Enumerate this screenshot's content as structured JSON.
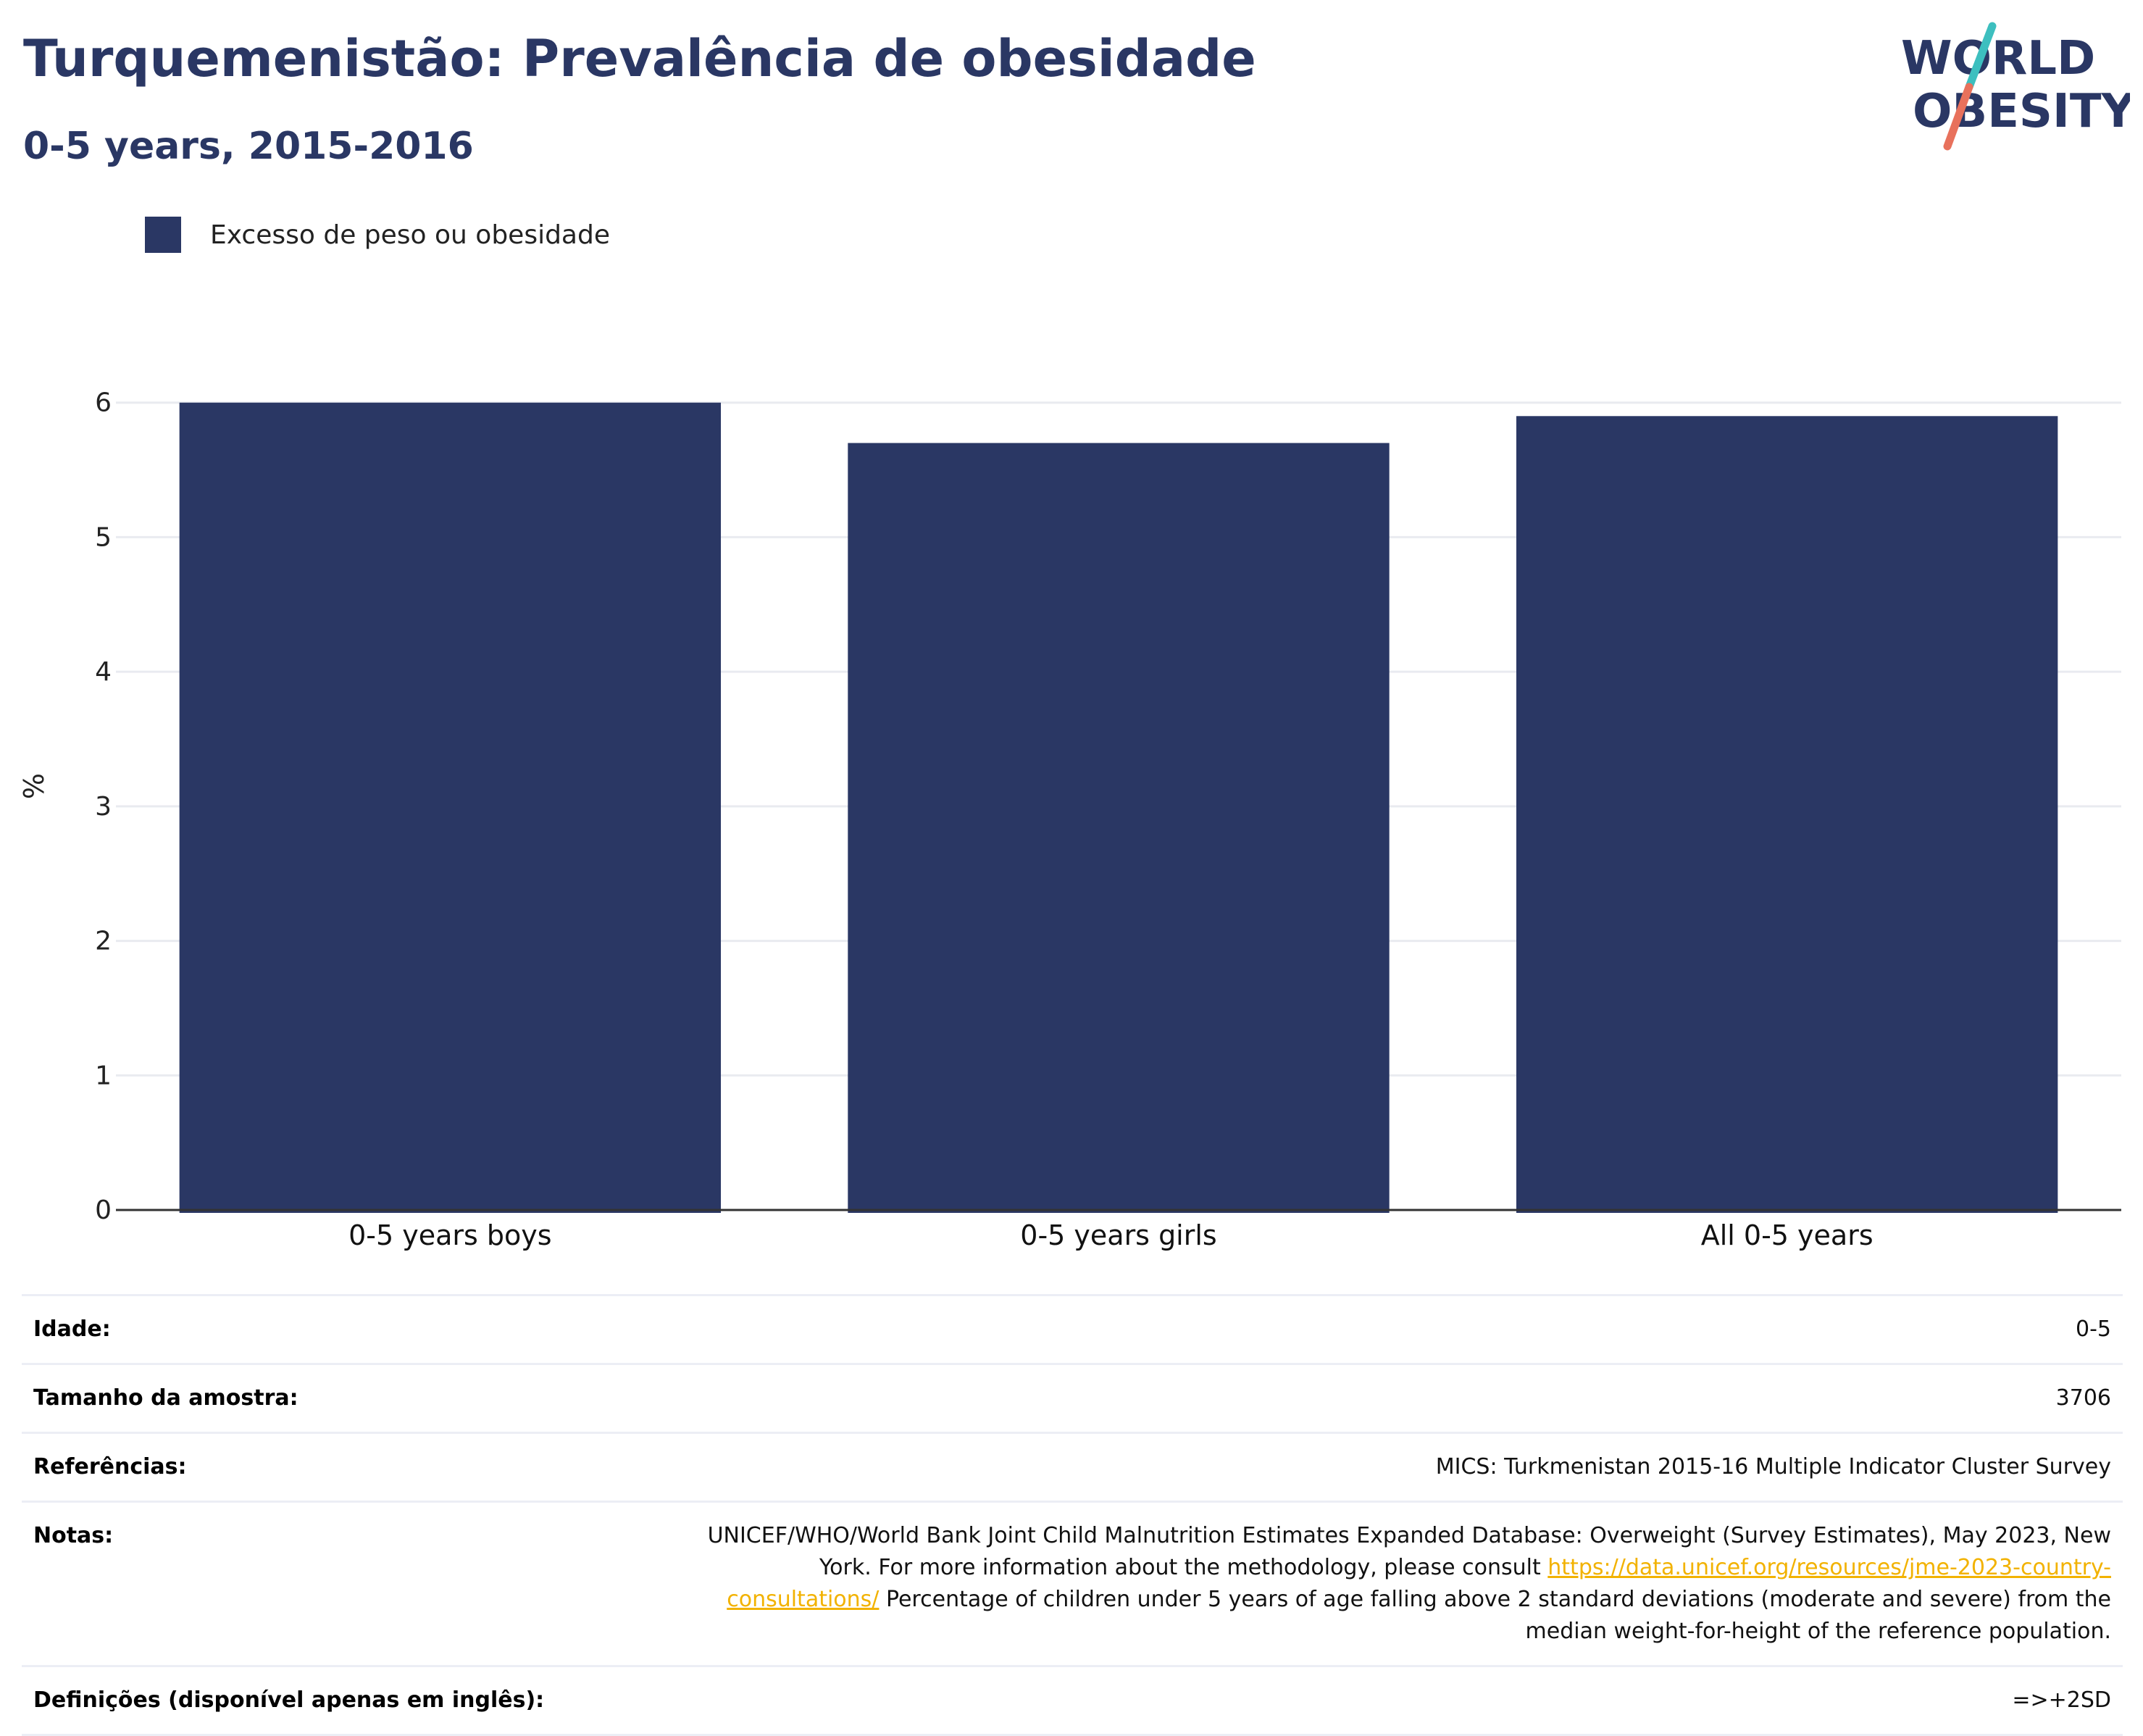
{
  "header": {
    "title": "Turquemenistão: Prevalência de obesidade",
    "subtitle": "0-5 years, 2015-2016"
  },
  "logo": {
    "line1": "WORLD",
    "line2": "OBESITY",
    "colors": {
      "text": "#2a3764",
      "slash_top": "#3dbfbf",
      "slash_bottom": "#e8715c"
    }
  },
  "colors": {
    "bar": "#2a3764",
    "grid": "#e9ebf0",
    "axis": "#333333",
    "link": "#f2b200"
  },
  "chart_data": {
    "type": "bar",
    "title": "Turquemenistão: Prevalência de obesidade",
    "subtitle": "0-5 years, 2015-2016",
    "categories": [
      "0-5 years boys",
      "0-5 years girls",
      "All 0-5 years"
    ],
    "series": [
      {
        "name": "Excesso de peso ou obesidade",
        "values": [
          6.0,
          5.7,
          5.9
        ],
        "color": "#2a3764"
      }
    ],
    "xlabel": "",
    "ylabel": "%",
    "ylim": [
      0,
      6.3
    ],
    "yticks": [
      0,
      1,
      2,
      3,
      4,
      5,
      6
    ],
    "grid": true,
    "legend_position": "top-left"
  },
  "meta_table": {
    "rows": [
      {
        "label": "Idade:",
        "value": "0-5"
      },
      {
        "label": "Tamanho da amostra:",
        "value": "3706"
      },
      {
        "label": "Referências:",
        "value": "MICS: Turkmenistan 2015-16 Multiple Indicator Cluster Survey"
      },
      {
        "label": "Notas:",
        "value_before": "UNICEF/WHO/World Bank Joint Child Malnutrition Estimates Expanded Database: Overweight (Survey Estimates), May 2023, New York. For more information about the methodology, please consult ",
        "link": "https://data.unicef.org/resources/jme-2023-country-consultations/",
        "value_after": " Percentage of children under 5 years of age falling above 2 standard deviations (moderate and severe) from the median weight-for-height of the reference population."
      },
      {
        "label": "Definições (disponível apenas em inglês):",
        "value": "=>+2SD"
      }
    ]
  }
}
